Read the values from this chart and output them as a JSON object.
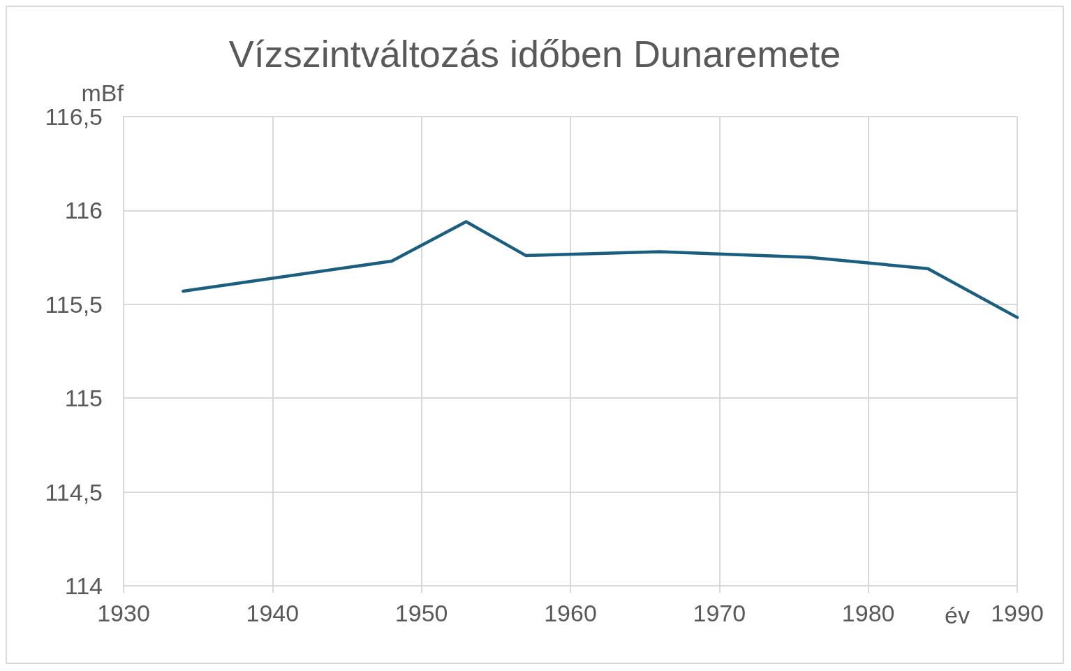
{
  "chart_data": {
    "type": "line",
    "title": "Vízszintváltozás időben Dunaremete",
    "xlabel": "év",
    "ylabel": "mBf",
    "x": [
      1934,
      1948,
      1953,
      1957,
      1966,
      1976,
      1984,
      1990
    ],
    "series": [
      {
        "color": "#1b5e80",
        "values": [
          115.57,
          115.73,
          115.94,
          115.76,
          115.78,
          115.75,
          115.69,
          115.43
        ]
      }
    ],
    "xlim": [
      1930,
      1990
    ],
    "xticks": [
      1930,
      1940,
      1950,
      1960,
      1970,
      1980,
      1990
    ],
    "ylim": [
      114,
      116.5
    ],
    "yticks": [
      114,
      {
        "value": 114.5,
        "label": "114,5"
      },
      115,
      {
        "value": 115.5,
        "label": "115,5"
      },
      116,
      {
        "value": 116.5,
        "label": "116,5"
      }
    ],
    "grid": true,
    "marker": "none",
    "line_style": "solid"
  }
}
